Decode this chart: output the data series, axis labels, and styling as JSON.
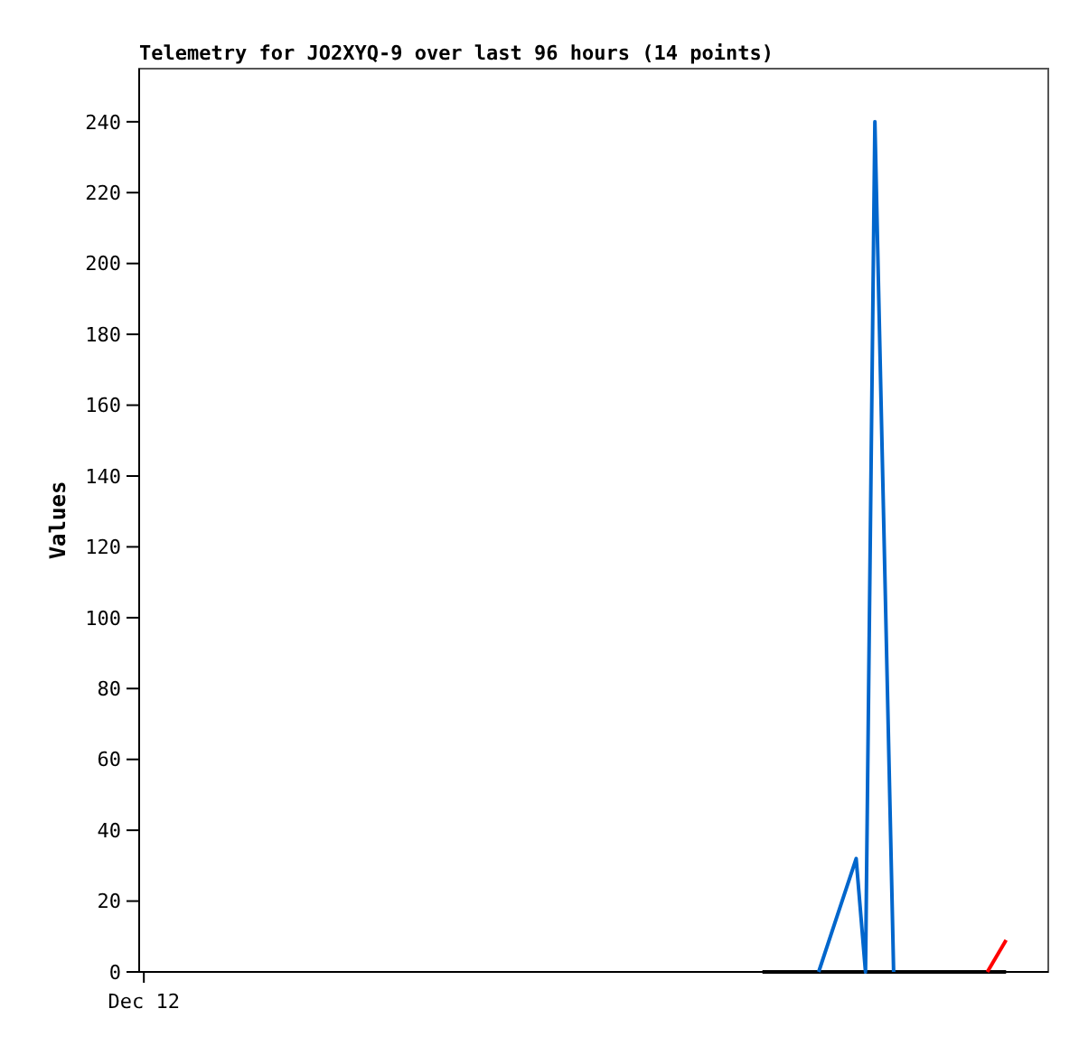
{
  "chart_data": {
    "type": "line",
    "title": "Telemetry for JO2XYQ-9 over last 96 hours (14 points)",
    "ylabel": "Values",
    "categories": [
      "Dec 12",
      null,
      null,
      null,
      null,
      null,
      null,
      null,
      null,
      null,
      null,
      null,
      null,
      null,
      null,
      null,
      null,
      null,
      null,
      null,
      null,
      null,
      null,
      null,
      null,
      null,
      null,
      null,
      null,
      null,
      null,
      null,
      null,
      null,
      null,
      null,
      null,
      null,
      null,
      null,
      null,
      null,
      null,
      null,
      null,
      null,
      null,
      null,
      null,
      null,
      null,
      null,
      null,
      null,
      null,
      null,
      null,
      null,
      null,
      null,
      null,
      null,
      null,
      null,
      null,
      null,
      null,
      null,
      null,
      null,
      null,
      null,
      null,
      null,
      null,
      null,
      null,
      null,
      null,
      null,
      null,
      null,
      null,
      null,
      null,
      null,
      null,
      null,
      null,
      null,
      null,
      null,
      null,
      null,
      null,
      null,
      null
    ],
    "ylim": [
      0,
      255
    ],
    "yticks": [
      0,
      20,
      40,
      60,
      80,
      100,
      120,
      140,
      160,
      180,
      200,
      220,
      240
    ],
    "grid": false,
    "marker": "none",
    "line_style": "solid",
    "series": [
      {
        "color": "#000000",
        "values": [
          null,
          null,
          null,
          null,
          null,
          null,
          null,
          null,
          null,
          null,
          null,
          null,
          null,
          null,
          null,
          null,
          null,
          null,
          null,
          null,
          null,
          null,
          null,
          null,
          null,
          null,
          null,
          null,
          null,
          null,
          null,
          null,
          null,
          null,
          null,
          null,
          null,
          null,
          null,
          null,
          null,
          null,
          null,
          null,
          null,
          null,
          null,
          null,
          null,
          null,
          null,
          null,
          null,
          null,
          null,
          null,
          null,
          null,
          null,
          null,
          null,
          null,
          null,
          null,
          null,
          null,
          0,
          null,
          null,
          null,
          null,
          null,
          null,
          null,
          null,
          null,
          null,
          null,
          null,
          null,
          null,
          null,
          null,
          null,
          null,
          null,
          null,
          null,
          null,
          null,
          null,
          null,
          0,
          null,
          null,
          null,
          null
        ]
      },
      {
        "color": "#0066cc",
        "values": [
          null,
          null,
          null,
          null,
          null,
          null,
          null,
          null,
          null,
          null,
          null,
          null,
          null,
          null,
          null,
          null,
          null,
          null,
          null,
          null,
          null,
          null,
          null,
          null,
          null,
          null,
          null,
          null,
          null,
          null,
          null,
          null,
          null,
          null,
          null,
          null,
          null,
          null,
          null,
          null,
          null,
          null,
          null,
          null,
          null,
          null,
          null,
          null,
          null,
          null,
          null,
          null,
          null,
          null,
          null,
          null,
          null,
          null,
          null,
          null,
          null,
          null,
          null,
          null,
          null,
          null,
          null,
          null,
          null,
          null,
          null,
          null,
          0,
          null,
          null,
          null,
          32,
          0,
          240,
          null,
          0,
          null,
          null,
          null,
          null,
          null,
          null,
          null,
          null,
          null,
          null,
          null,
          null,
          null,
          null,
          null,
          null
        ]
      },
      {
        "color": "#ff0000",
        "values": [
          null,
          null,
          null,
          null,
          null,
          null,
          null,
          null,
          null,
          null,
          null,
          null,
          null,
          null,
          null,
          null,
          null,
          null,
          null,
          null,
          null,
          null,
          null,
          null,
          null,
          null,
          null,
          null,
          null,
          null,
          null,
          null,
          null,
          null,
          null,
          null,
          null,
          null,
          null,
          null,
          null,
          null,
          null,
          null,
          null,
          null,
          null,
          null,
          null,
          null,
          null,
          null,
          null,
          null,
          null,
          null,
          null,
          null,
          null,
          null,
          null,
          null,
          null,
          null,
          null,
          null,
          null,
          null,
          null,
          null,
          null,
          null,
          null,
          null,
          null,
          null,
          null,
          null,
          null,
          null,
          null,
          null,
          null,
          null,
          null,
          null,
          null,
          null,
          null,
          null,
          0,
          null,
          9,
          null,
          null,
          null,
          null
        ]
      }
    ]
  }
}
